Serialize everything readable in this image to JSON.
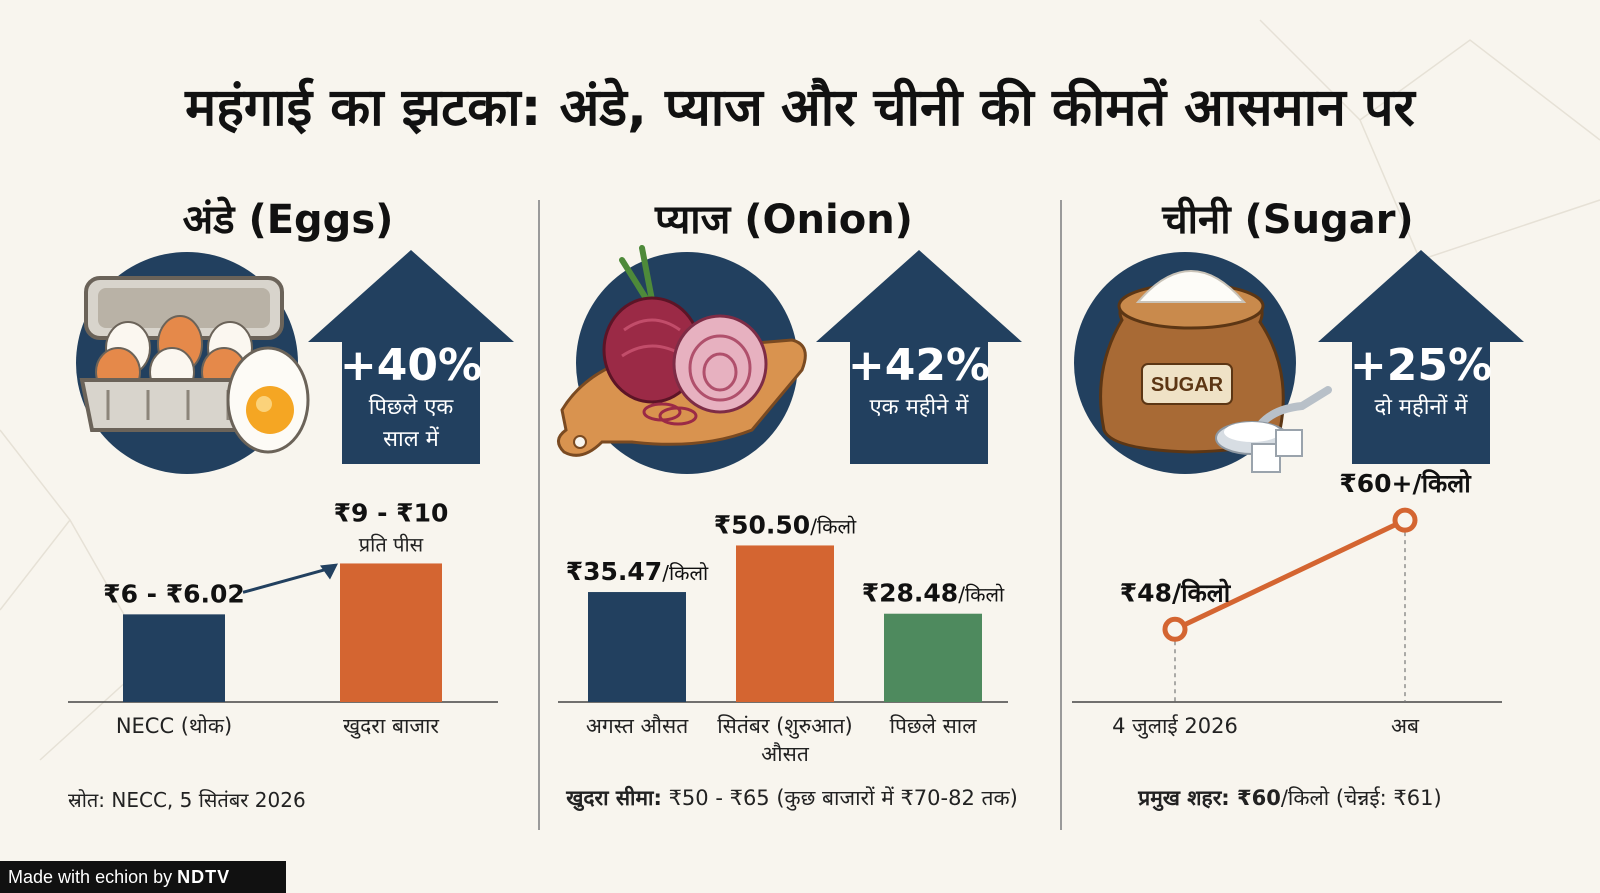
{
  "title": "महंगाई का झटका: अंडे, प्याज और चीनी की कीमतें आसमान पर",
  "colors": {
    "navy": "#22405f",
    "orange": "#d46531",
    "green": "#4e8a5e",
    "background": "#f8f5ee"
  },
  "panels": [
    {
      "title": "अंडे (Eggs)",
      "icon": "egg-tray-icon",
      "change": {
        "value": "+40%",
        "period": "पिछले एक",
        "period2": "साल में"
      }
    },
    {
      "title": "प्याज (Onion)",
      "icon": "onion-board-icon",
      "change": {
        "value": "+42%",
        "period": "एक महीने में"
      }
    },
    {
      "title": "चीनी (Sugar)",
      "icon": "sugar-sack-icon",
      "sack_label": "SUGAR",
      "change": {
        "value": "+25%",
        "period": "दो महीनों में"
      }
    }
  ],
  "chart_data": [
    {
      "type": "bar",
      "categories": [
        "NECC (थोक)",
        "खुदरा बाजार"
      ],
      "values": [
        6.01,
        9.5
      ],
      "ylim": [
        0,
        12
      ],
      "bar_colors": [
        "#22405f",
        "#d46531"
      ],
      "data_labels": [
        {
          "main": "₹6 - ₹6.02",
          "sub": ""
        },
        {
          "main": "₹9 - ₹10",
          "sub": "प्रति पीस"
        }
      ],
      "source": "स्रोत: NECC, 5 सितंबर 2026"
    },
    {
      "type": "bar",
      "categories": [
        "अगस्त औसत",
        "सितंबर (शुरुआत)",
        "पिछले साल"
      ],
      "categories_line2": [
        "",
        "औसत",
        ""
      ],
      "values": [
        35.47,
        50.5,
        28.48
      ],
      "ylim": [
        0,
        60
      ],
      "bar_colors": [
        "#22405f",
        "#d46531",
        "#4e8a5e"
      ],
      "data_labels": [
        {
          "main": "₹35.47",
          "sub": "/किलो"
        },
        {
          "main": "₹50.50",
          "sub": "/किलो"
        },
        {
          "main": "₹28.48",
          "sub": "/किलो"
        }
      ],
      "note_bold": "खुदरा सीमा:",
      "note": " ₹50 - ₹65 (कुछ बाजारों में ₹70-82 तक)"
    },
    {
      "type": "line",
      "categories": [
        "4 जुलाई 2026",
        "अब"
      ],
      "values": [
        48,
        60
      ],
      "ylim": [
        40,
        62
      ],
      "line_color": "#d46531",
      "data_labels": [
        "₹48/किलो",
        "₹60+/किलो"
      ],
      "note_bold": "प्रमुख शहर:",
      "note_bold2": " ₹60",
      "note": "/किलो (चेन्नई: ₹61)"
    }
  ],
  "footer": {
    "made_with": "Made with",
    "brand": "echion",
    "by": "by",
    "org": "NDTV"
  }
}
